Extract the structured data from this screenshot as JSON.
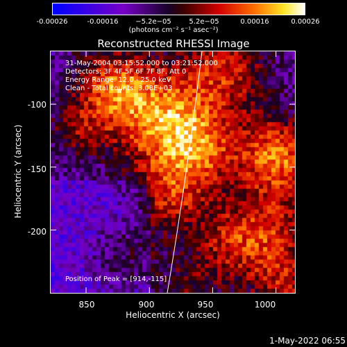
{
  "chart_data": {
    "type": "heatmap",
    "title": "Reconstructed RHESSI Image",
    "xlabel": "Heliocentric X (arcsec)",
    "ylabel": "Heliocentric Y (arcsec)",
    "xlim": [
      822,
      1015
    ],
    "ylim": [
      -250,
      -58
    ],
    "xticks": [
      850,
      900,
      950,
      1000
    ],
    "yticks": [
      -100,
      -150,
      -200
    ],
    "colorbar": {
      "ticks": [
        "-0.00026",
        "-0.00016",
        "−5.2e−05",
        "5.2e−05",
        "0.00016",
        "0.00026"
      ],
      "units": "(photons cm⁻² s⁻¹ asec⁻²)",
      "range": [
        -0.00026,
        0.00026
      ]
    },
    "info_lines": [
      "31-May-2004 03:15:52.000 to 03:21:52.000",
      "Detectors: 3F 4F 5F 6F 7F 8F, Att 0",
      "Energy Range: 12.0 - 25.0 keV",
      "Clean - Total counts: 3.08E+03"
    ],
    "peak_text": "Position of Peak = [914,-115]",
    "peak": [
      914,
      -115
    ]
  },
  "footer": {
    "timestamp": "1-May-2022 06:55"
  },
  "colors": {
    "background": "#000000",
    "axes": "#ffffff"
  }
}
